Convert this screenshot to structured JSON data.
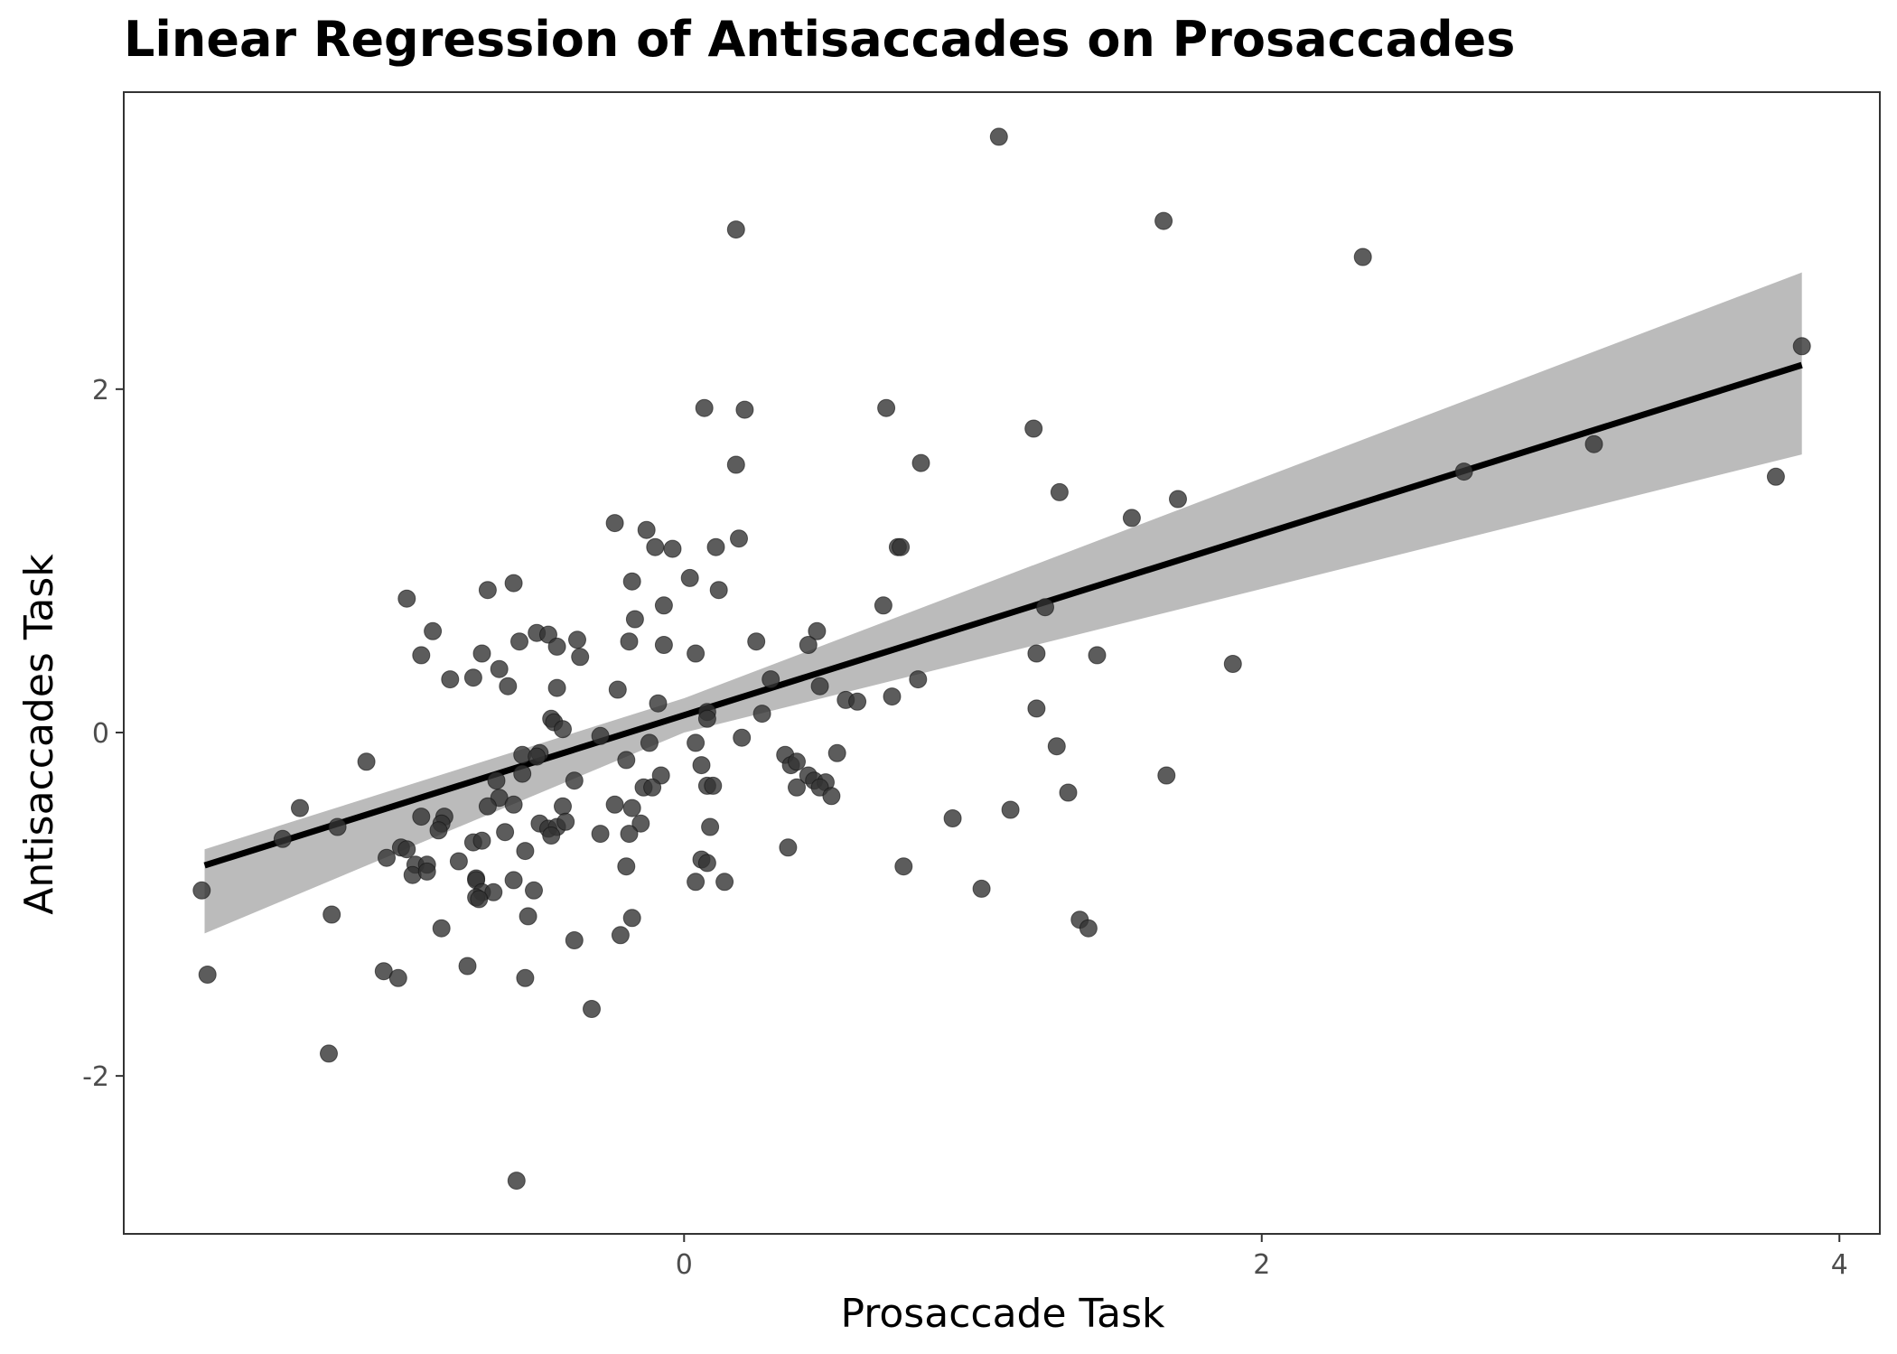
{
  "chart_data": {
    "type": "scatter",
    "title": "Linear Regression of Antisaccades on Prosaccades",
    "xlabel": "Prosaccade Task",
    "ylabel": "Antisaccades Task",
    "xlim": [
      -1.94,
      4.14
    ],
    "ylim": [
      -2.92,
      3.73
    ],
    "x_ticks": [
      0,
      2,
      4
    ],
    "x_tick_labels": [
      "0",
      "2",
      "4"
    ],
    "y_ticks": [
      -2,
      0,
      2
    ],
    "y_tick_labels": [
      "-2",
      "0",
      "2"
    ],
    "grid": false,
    "point_color": "#333333",
    "regression": {
      "slope": 0.527,
      "intercept": 0.101,
      "x_range": [
        -1.66,
        3.87
      ],
      "ci_lower": [
        [
          -1.66,
          -1.17
        ],
        [
          0.0,
          0.0
        ],
        [
          3.87,
          1.62
        ]
      ],
      "ci_upper": [
        [
          -1.66,
          -0.68
        ],
        [
          0.0,
          0.2
        ],
        [
          3.87,
          2.68
        ]
      ],
      "line_color": "#000000",
      "ci_color": "#bbbbbb"
    },
    "points": [
      [
        1.09,
        3.47
      ],
      [
        0.18,
        2.93
      ],
      [
        1.66,
        2.98
      ],
      [
        2.35,
        2.77
      ],
      [
        3.87,
        2.25
      ],
      [
        0.07,
        1.89
      ],
      [
        0.21,
        1.88
      ],
      [
        0.7,
        1.89
      ],
      [
        1.21,
        1.77
      ],
      [
        3.15,
        1.68
      ],
      [
        0.18,
        1.56
      ],
      [
        0.82,
        1.57
      ],
      [
        2.7,
        1.52
      ],
      [
        3.78,
        1.49
      ],
      [
        1.3,
        1.4
      ],
      [
        1.71,
        1.36
      ],
      [
        1.55,
        1.25
      ],
      [
        -0.24,
        1.22
      ],
      [
        -0.13,
        1.18
      ],
      [
        0.19,
        1.13
      ],
      [
        -0.1,
        1.08
      ],
      [
        -0.04,
        1.07
      ],
      [
        0.11,
        1.08
      ],
      [
        0.74,
        1.08
      ],
      [
        0.75,
        1.08
      ],
      [
        0.02,
        0.9
      ],
      [
        -0.18,
        0.88
      ],
      [
        -0.59,
        0.87
      ],
      [
        -0.68,
        0.83
      ],
      [
        0.12,
        0.83
      ],
      [
        -0.96,
        0.78
      ],
      [
        -0.07,
        0.74
      ],
      [
        0.69,
        0.74
      ],
      [
        1.25,
        0.73
      ],
      [
        -0.17,
        0.66
      ],
      [
        -0.87,
        0.59
      ],
      [
        -0.51,
        0.58
      ],
      [
        -0.47,
        0.57
      ],
      [
        0.46,
        0.59
      ],
      [
        -0.37,
        0.54
      ],
      [
        -0.57,
        0.53
      ],
      [
        -0.19,
        0.53
      ],
      [
        0.25,
        0.53
      ],
      [
        -0.44,
        0.5
      ],
      [
        -0.07,
        0.51
      ],
      [
        0.43,
        0.51
      ],
      [
        -0.91,
        0.45
      ],
      [
        -0.7,
        0.46
      ],
      [
        -0.36,
        0.44
      ],
      [
        0.04,
        0.46
      ],
      [
        1.22,
        0.46
      ],
      [
        1.43,
        0.45
      ],
      [
        1.9,
        0.4
      ],
      [
        -0.64,
        0.37
      ],
      [
        -0.81,
        0.31
      ],
      [
        -0.73,
        0.32
      ],
      [
        -0.61,
        0.27
      ],
      [
        -0.44,
        0.26
      ],
      [
        -0.23,
        0.25
      ],
      [
        0.3,
        0.31
      ],
      [
        0.47,
        0.27
      ],
      [
        0.72,
        0.21
      ],
      [
        0.81,
        0.31
      ],
      [
        -0.09,
        0.17
      ],
      [
        0.56,
        0.19
      ],
      [
        0.6,
        0.18
      ],
      [
        0.08,
        0.12
      ],
      [
        0.27,
        0.11
      ],
      [
        1.22,
        0.14
      ],
      [
        -0.46,
        0.08
      ],
      [
        -0.45,
        0.06
      ],
      [
        0.08,
        0.08
      ],
      [
        -0.42,
        0.02
      ],
      [
        -0.29,
        -0.02
      ],
      [
        0.2,
        -0.03
      ],
      [
        -0.12,
        -0.06
      ],
      [
        0.04,
        -0.06
      ],
      [
        1.29,
        -0.08
      ],
      [
        -1.1,
        -0.17
      ],
      [
        -0.56,
        -0.13
      ],
      [
        -0.5,
        -0.12
      ],
      [
        -0.51,
        -0.14
      ],
      [
        0.35,
        -0.13
      ],
      [
        0.53,
        -0.12
      ],
      [
        -0.2,
        -0.16
      ],
      [
        0.06,
        -0.19
      ],
      [
        0.37,
        -0.19
      ],
      [
        0.39,
        -0.17
      ],
      [
        -0.56,
        -0.24
      ],
      [
        -0.08,
        -0.25
      ],
      [
        0.43,
        -0.25
      ],
      [
        0.45,
        -0.28
      ],
      [
        -0.65,
        -0.28
      ],
      [
        -0.38,
        -0.28
      ],
      [
        0.08,
        -0.31
      ],
      [
        0.1,
        -0.31
      ],
      [
        0.39,
        -0.32
      ],
      [
        0.49,
        -0.29
      ],
      [
        0.47,
        -0.32
      ],
      [
        -0.14,
        -0.32
      ],
      [
        -0.11,
        -0.32
      ],
      [
        -0.64,
        -0.38
      ],
      [
        -0.59,
        -0.42
      ],
      [
        0.51,
        -0.37
      ],
      [
        1.33,
        -0.35
      ],
      [
        -1.33,
        -0.44
      ],
      [
        -0.68,
        -0.43
      ],
      [
        -0.42,
        -0.43
      ],
      [
        -0.18,
        -0.44
      ],
      [
        -0.24,
        -0.42
      ],
      [
        1.13,
        -0.45
      ],
      [
        1.67,
        -0.25
      ],
      [
        -0.83,
        -0.49
      ],
      [
        -0.91,
        -0.49
      ],
      [
        -1.2,
        -0.55
      ],
      [
        -0.84,
        -0.53
      ],
      [
        -0.5,
        -0.53
      ],
      [
        -0.47,
        -0.56
      ],
      [
        -0.44,
        -0.55
      ],
      [
        -0.41,
        -0.52
      ],
      [
        -0.15,
        -0.53
      ],
      [
        0.09,
        -0.55
      ],
      [
        0.93,
        -0.5
      ],
      [
        -1.39,
        -0.62
      ],
      [
        -0.85,
        -0.57
      ],
      [
        -0.62,
        -0.58
      ],
      [
        -0.29,
        -0.59
      ],
      [
        -0.19,
        -0.59
      ],
      [
        -0.98,
        -0.67
      ],
      [
        -0.96,
        -0.68
      ],
      [
        -0.73,
        -0.64
      ],
      [
        -0.7,
        -0.63
      ],
      [
        -0.46,
        -0.6
      ],
      [
        0.36,
        -0.67
      ],
      [
        -1.03,
        -0.73
      ],
      [
        -0.93,
        -0.77
      ],
      [
        -0.89,
        -0.77
      ],
      [
        -0.78,
        -0.75
      ],
      [
        -0.55,
        -0.69
      ],
      [
        0.06,
        -0.74
      ],
      [
        0.08,
        -0.76
      ],
      [
        0.76,
        -0.78
      ],
      [
        -0.2,
        -0.78
      ],
      [
        -0.94,
        -0.83
      ],
      [
        -0.72,
        -0.85
      ],
      [
        -0.72,
        -0.86
      ],
      [
        -0.59,
        -0.86
      ],
      [
        0.04,
        -0.87
      ],
      [
        0.14,
        -0.87
      ],
      [
        -0.89,
        -0.81
      ],
      [
        -1.67,
        -0.92
      ],
      [
        -0.7,
        -0.93
      ],
      [
        -0.66,
        -0.93
      ],
      [
        -0.52,
        -0.92
      ],
      [
        1.03,
        -0.91
      ],
      [
        -0.72,
        -0.96
      ],
      [
        -0.71,
        -0.97
      ],
      [
        -1.22,
        -1.06
      ],
      [
        -0.54,
        -1.07
      ],
      [
        -0.18,
        -1.08
      ],
      [
        1.37,
        -1.09
      ],
      [
        1.4,
        -1.14
      ],
      [
        -0.84,
        -1.14
      ],
      [
        -0.38,
        -1.21
      ],
      [
        -0.22,
        -1.18
      ],
      [
        -0.75,
        -1.36
      ],
      [
        -1.65,
        -1.41
      ],
      [
        -1.04,
        -1.39
      ],
      [
        -0.99,
        -1.43
      ],
      [
        -0.55,
        -1.43
      ],
      [
        -0.32,
        -1.61
      ],
      [
        -1.23,
        -1.87
      ],
      [
        -0.58,
        -2.61
      ]
    ]
  }
}
